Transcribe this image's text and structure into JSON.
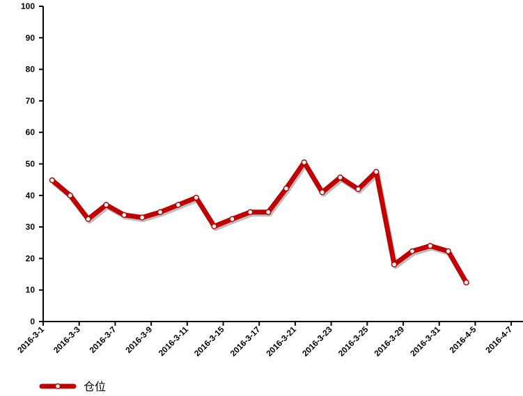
{
  "chart_data": {
    "type": "line",
    "categories": [
      "2016-3-1",
      null,
      "2016-3-3",
      null,
      "2016-3-7",
      null,
      "2016-3-9",
      null,
      "2016-3-11",
      null,
      "2016-3-15",
      null,
      "2016-3-17",
      null,
      "2016-3-21",
      null,
      "2016-3-23",
      null,
      "2016-3-25",
      null,
      "2016-3-29",
      null,
      "2016-3-31",
      null,
      "2016-4-5",
      null,
      "2016-4-7",
      null
    ],
    "series": [
      {
        "name": "仓位",
        "color": "#c00000",
        "values": [
          44.8,
          40,
          32.5,
          37,
          33.8,
          33,
          34.7,
          37,
          39.3,
          30.2,
          32.5,
          34.7,
          34.7,
          42.2,
          50.5,
          41,
          45.7,
          42,
          47.5,
          18.1,
          22.3,
          24,
          22.3,
          12.4,
          null,
          null,
          null,
          null
        ]
      }
    ],
    "ylim": [
      0,
      100
    ],
    "yticks": [
      0,
      10,
      20,
      30,
      40,
      50,
      60,
      70,
      80,
      90,
      100
    ]
  }
}
